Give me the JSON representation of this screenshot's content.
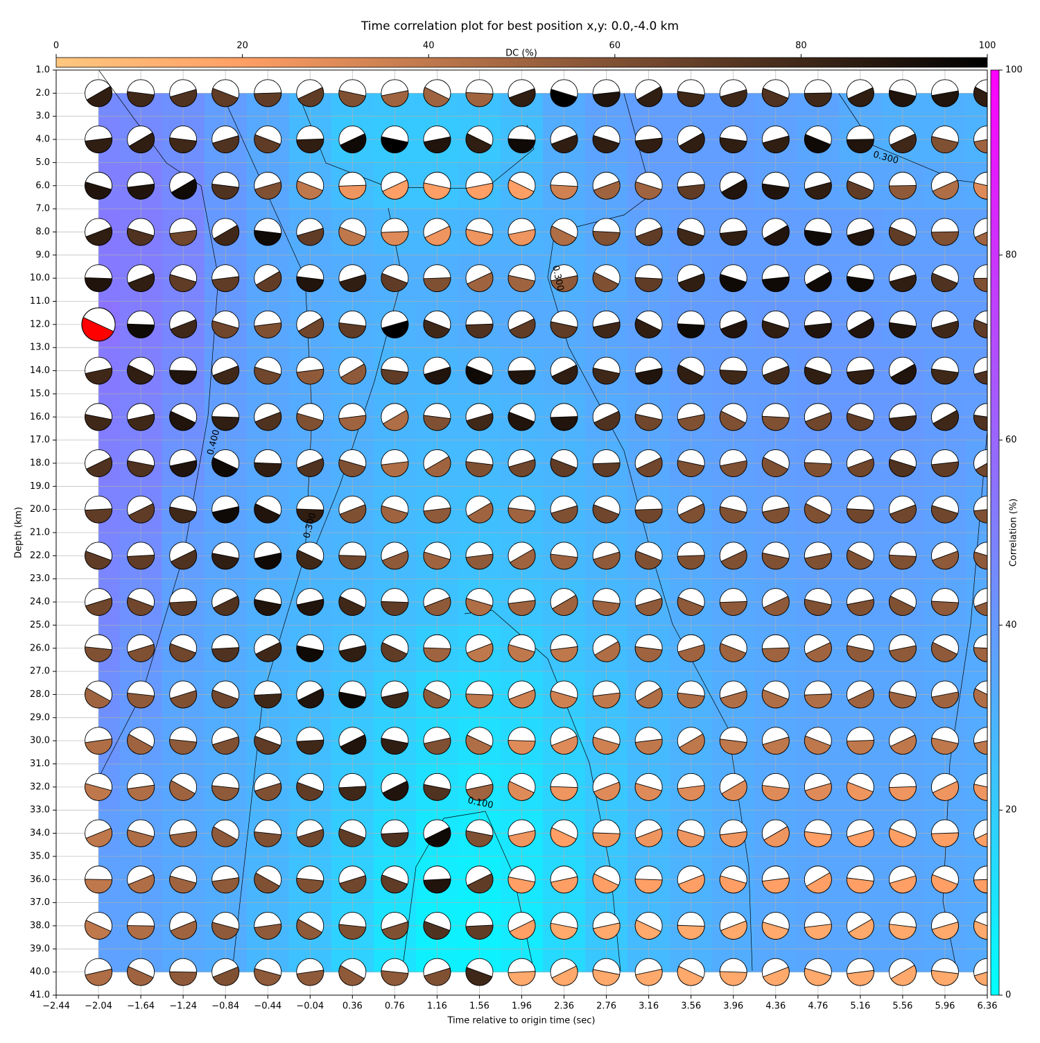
{
  "chart_data": {
    "type": "heatmap",
    "title": "Time correlation plot for best position x,y: 0.0,-4.0 km",
    "xlabel": "Time relative to origin time (sec)",
    "ylabel": "Depth (km)",
    "x": [
      -2.04,
      -1.64,
      -1.24,
      -0.84,
      -0.44,
      -0.04,
      0.36,
      0.76,
      1.16,
      1.56,
      1.96,
      2.36,
      2.76,
      3.16,
      3.56,
      3.96,
      4.36,
      4.76,
      5.16,
      5.56,
      5.96,
      6.36
    ],
    "y": [
      2,
      4,
      6,
      8,
      10,
      12,
      14,
      16,
      18,
      20,
      22,
      24,
      26,
      28,
      30,
      32,
      34,
      36,
      38,
      40
    ],
    "values": [
      [
        46,
        45,
        43,
        38,
        34,
        28,
        24,
        23,
        23,
        24,
        27,
        33,
        37,
        38,
        38,
        38,
        37,
        36,
        33,
        31,
        31,
        30
      ],
      [
        48,
        46,
        44,
        38,
        34,
        27,
        22,
        21,
        21,
        22,
        25,
        32,
        36,
        38,
        38,
        38,
        37,
        35,
        32,
        31,
        31,
        30
      ],
      [
        50,
        50,
        46,
        40,
        35,
        30,
        26,
        23,
        23,
        25,
        28,
        32,
        35,
        38,
        38,
        38,
        37,
        36,
        35,
        35,
        34,
        33
      ],
      [
        52,
        51,
        48,
        40,
        35,
        32,
        30,
        28,
        28,
        29,
        30,
        31,
        34,
        37,
        38,
        38,
        38,
        38,
        38,
        37,
        37,
        37
      ],
      [
        52,
        51,
        48,
        40,
        35,
        33,
        32,
        31,
        31,
        32,
        32,
        31,
        33,
        36,
        38,
        39,
        39,
        39,
        38,
        38,
        38,
        38
      ],
      [
        55,
        51,
        47,
        40,
        35,
        33,
        31,
        30,
        31,
        32,
        33,
        33,
        35,
        37,
        39,
        39,
        40,
        40,
        40,
        39,
        39,
        39
      ],
      [
        52,
        50,
        46,
        39,
        35,
        33,
        31,
        29,
        29,
        30,
        31,
        32,
        34,
        36,
        38,
        39,
        39,
        40,
        40,
        40,
        39,
        39
      ],
      [
        51,
        49,
        44,
        38,
        35,
        33,
        31,
        29,
        28,
        28,
        29,
        30,
        33,
        35,
        37,
        38,
        39,
        40,
        40,
        40,
        39,
        38
      ],
      [
        50,
        48,
        42,
        37,
        34,
        33,
        31,
        28,
        27,
        27,
        28,
        29,
        31,
        34,
        36,
        37,
        38,
        39,
        39,
        39,
        38,
        36
      ],
      [
        49,
        47,
        40,
        36,
        33,
        31,
        30,
        27,
        26,
        25,
        26,
        28,
        30,
        32,
        34,
        36,
        37,
        38,
        38,
        38,
        37,
        35
      ],
      [
        48,
        45,
        38,
        35,
        32,
        30,
        29,
        27,
        25,
        24,
        25,
        27,
        29,
        31,
        33,
        35,
        36,
        37,
        37,
        37,
        36,
        34
      ],
      [
        47,
        43,
        37,
        34,
        31,
        29,
        28,
        26,
        24,
        22,
        23,
        25,
        28,
        30,
        32,
        34,
        35,
        36,
        36,
        36,
        35,
        33
      ],
      [
        46,
        41,
        36,
        33,
        30,
        28,
        26,
        23,
        20,
        18,
        20,
        23,
        26,
        29,
        31,
        33,
        34,
        35,
        35,
        35,
        34,
        33
      ],
      [
        44,
        40,
        35,
        32,
        29,
        27,
        24,
        20,
        16,
        14,
        16,
        20,
        24,
        28,
        30,
        32,
        34,
        35,
        35,
        35,
        34,
        33
      ],
      [
        42,
        38,
        35,
        32,
        29,
        26,
        22,
        18,
        14,
        12,
        14,
        18,
        23,
        27,
        30,
        32,
        34,
        35,
        35,
        35,
        34,
        33
      ],
      [
        40,
        37,
        35,
        32,
        29,
        26,
        21,
        16,
        12,
        10,
        12,
        17,
        22,
        27,
        30,
        32,
        34,
        35,
        35,
        35,
        34,
        33
      ],
      [
        38,
        36,
        34,
        32,
        29,
        25,
        20,
        14,
        9,
        8,
        10,
        16,
        22,
        27,
        30,
        32,
        34,
        35,
        35,
        35,
        34,
        33
      ],
      [
        37,
        36,
        34,
        32,
        29,
        24,
        19,
        12,
        7,
        6,
        9,
        15,
        22,
        27,
        30,
        32,
        34,
        35,
        35,
        35,
        34,
        33
      ],
      [
        37,
        36,
        34,
        32,
        28,
        24,
        18,
        11,
        6,
        5,
        8,
        15,
        22,
        27,
        30,
        32,
        34,
        35,
        35,
        35,
        34,
        33
      ],
      [
        37,
        36,
        34,
        32,
        28,
        24,
        18,
        11,
        6,
        5,
        8,
        15,
        22,
        27,
        30,
        32,
        34,
        35,
        35,
        35,
        34,
        33
      ]
    ],
    "dc_values": [
      [
        85,
        80,
        75,
        70,
        70,
        70,
        60,
        50,
        50,
        50,
        85,
        100,
        90,
        85,
        80,
        80,
        75,
        80,
        85,
        90,
        90,
        85
      ],
      [
        85,
        85,
        80,
        75,
        70,
        85,
        95,
        100,
        90,
        85,
        95,
        85,
        85,
        85,
        85,
        85,
        85,
        95,
        90,
        80,
        60,
        50
      ],
      [
        90,
        90,
        95,
        75,
        60,
        40,
        25,
        20,
        20,
        20,
        20,
        35,
        50,
        50,
        70,
        90,
        90,
        85,
        70,
        55,
        45,
        30
      ],
      [
        85,
        75,
        65,
        80,
        95,
        70,
        40,
        30,
        25,
        25,
        25,
        45,
        60,
        70,
        80,
        85,
        90,
        95,
        90,
        70,
        60,
        50
      ],
      [
        90,
        85,
        70,
        70,
        70,
        90,
        85,
        70,
        60,
        50,
        50,
        55,
        60,
        70,
        85,
        95,
        95,
        95,
        95,
        85,
        75,
        60
      ],
      [
        90,
        95,
        80,
        65,
        60,
        65,
        70,
        100,
        80,
        75,
        70,
        70,
        80,
        85,
        95,
        90,
        85,
        90,
        90,
        90,
        80,
        70
      ],
      [
        80,
        85,
        90,
        80,
        65,
        55,
        55,
        70,
        90,
        95,
        90,
        85,
        80,
        90,
        85,
        80,
        80,
        85,
        85,
        90,
        80,
        75
      ],
      [
        80,
        80,
        90,
        85,
        75,
        60,
        50,
        45,
        60,
        80,
        90,
        90,
        75,
        65,
        60,
        60,
        60,
        65,
        70,
        80,
        80,
        75
      ],
      [
        75,
        75,
        90,
        95,
        85,
        75,
        60,
        45,
        50,
        60,
        65,
        70,
        70,
        65,
        60,
        60,
        60,
        60,
        65,
        75,
        70,
        65
      ],
      [
        70,
        70,
        80,
        95,
        90,
        85,
        60,
        50,
        55,
        50,
        50,
        60,
        65,
        65,
        60,
        60,
        60,
        60,
        65,
        65,
        65,
        60
      ],
      [
        70,
        70,
        75,
        85,
        95,
        80,
        65,
        55,
        50,
        55,
        50,
        50,
        55,
        60,
        60,
        60,
        60,
        60,
        60,
        60,
        55,
        55
      ],
      [
        65,
        65,
        70,
        75,
        90,
        90,
        80,
        70,
        55,
        45,
        50,
        50,
        50,
        55,
        55,
        55,
        55,
        60,
        60,
        60,
        55,
        55
      ],
      [
        60,
        60,
        65,
        75,
        80,
        95,
        85,
        70,
        50,
        40,
        40,
        40,
        45,
        50,
        50,
        50,
        50,
        50,
        55,
        55,
        55,
        50
      ],
      [
        50,
        55,
        60,
        65,
        80,
        90,
        95,
        80,
        55,
        40,
        35,
        35,
        40,
        45,
        45,
        45,
        45,
        45,
        50,
        50,
        50,
        45
      ],
      [
        45,
        50,
        55,
        60,
        70,
        80,
        90,
        85,
        60,
        45,
        30,
        30,
        35,
        40,
        40,
        40,
        40,
        40,
        40,
        40,
        40,
        40
      ],
      [
        40,
        45,
        50,
        55,
        60,
        70,
        80,
        90,
        75,
        50,
        30,
        25,
        30,
        30,
        30,
        30,
        30,
        30,
        25,
        25,
        25,
        25
      ],
      [
        40,
        45,
        50,
        55,
        60,
        65,
        70,
        75,
        95,
        60,
        25,
        20,
        25,
        25,
        25,
        25,
        25,
        20,
        20,
        20,
        20,
        20
      ],
      [
        40,
        45,
        50,
        55,
        60,
        60,
        65,
        70,
        90,
        70,
        20,
        20,
        20,
        20,
        20,
        20,
        20,
        20,
        20,
        20,
        20,
        20
      ],
      [
        40,
        45,
        50,
        55,
        55,
        55,
        60,
        60,
        75,
        70,
        20,
        15,
        15,
        15,
        15,
        15,
        15,
        15,
        15,
        15,
        15,
        15
      ],
      [
        45,
        50,
        55,
        60,
        55,
        55,
        55,
        55,
        60,
        80,
        15,
        15,
        15,
        15,
        15,
        15,
        15,
        15,
        15,
        15,
        15,
        15
      ]
    ],
    "best": {
      "x": -2.04,
      "y": 12,
      "color": "#ff0000"
    },
    "xlim": [
      -2.44,
      6.36
    ],
    "ylim": [
      1,
      41
    ],
    "y_inverted": true,
    "grid": true,
    "xticks": [
      {
        "value": -2.44,
        "label": "−2.44"
      },
      {
        "value": -2.04,
        "label": "−2.04"
      },
      {
        "value": -1.64,
        "label": "−1.64"
      },
      {
        "value": -1.24,
        "label": "−1.24"
      },
      {
        "value": -0.84,
        "label": "−0.84"
      },
      {
        "value": -0.44,
        "label": "−0.44"
      },
      {
        "value": -0.04,
        "label": "−0.04"
      },
      0.36,
      0.76,
      1.16,
      1.56,
      1.96,
      2.36,
      2.76,
      3.16,
      3.56,
      3.96,
      4.36,
      4.76,
      5.16,
      5.56,
      5.96,
      6.36
    ],
    "yticks": [
      {
        "value": 1,
        "label": "1.0"
      },
      {
        "value": 2,
        "label": "2.0"
      },
      {
        "value": 3,
        "label": "3.0"
      },
      {
        "value": 4,
        "label": "4.0"
      },
      {
        "value": 5,
        "label": "5.0"
      },
      {
        "value": 6,
        "label": "6.0"
      },
      {
        "value": 7,
        "label": "7.0"
      },
      {
        "value": 8,
        "label": "8.0"
      },
      {
        "value": 9,
        "label": "9.0"
      },
      {
        "value": 10,
        "label": "10.0"
      },
      {
        "value": 11,
        "label": "11.0"
      },
      {
        "value": 12,
        "label": "12.0"
      },
      {
        "value": 13,
        "label": "13.0"
      },
      {
        "value": 14,
        "label": "14.0"
      },
      {
        "value": 15,
        "label": "15.0"
      },
      {
        "value": 16,
        "label": "16.0"
      },
      {
        "value": 17,
        "label": "17.0"
      },
      {
        "value": 18,
        "label": "18.0"
      },
      {
        "value": 19,
        "label": "19.0"
      },
      {
        "value": 20,
        "label": "20.0"
      },
      {
        "value": 21,
        "label": "21.0"
      },
      {
        "value": 22,
        "label": "22.0"
      },
      {
        "value": 23,
        "label": "23.0"
      },
      {
        "value": 24,
        "label": "24.0"
      },
      {
        "value": 25,
        "label": "25.0"
      },
      {
        "value": 26,
        "label": "26.0"
      },
      {
        "value": 27,
        "label": "27.0"
      },
      {
        "value": 28,
        "label": "28.0"
      },
      {
        "value": 29,
        "label": "29.0"
      },
      {
        "value": 30,
        "label": "30.0"
      },
      {
        "value": 31,
        "label": "31.0"
      },
      {
        "value": 32,
        "label": "32.0"
      },
      {
        "value": 33,
        "label": "33.0"
      },
      {
        "value": 34,
        "label": "34.0"
      },
      {
        "value": 35,
        "label": "35.0"
      },
      {
        "value": 36,
        "label": "36.0"
      },
      {
        "value": 37,
        "label": "37.0"
      },
      {
        "value": 38,
        "label": "38.0"
      },
      {
        "value": 39,
        "label": "39.0"
      },
      {
        "value": 40,
        "label": "40.0"
      },
      {
        "value": 41,
        "label": "41.0"
      }
    ],
    "colorbar": {
      "label": "Correlation (%)",
      "lim": [
        0,
        100
      ],
      "ticks": [
        0,
        20,
        40,
        60,
        80,
        100
      ]
    },
    "dc_colorbar": {
      "label": "DC (%)",
      "lim": [
        0,
        100
      ],
      "ticks": [
        0,
        20,
        40,
        60,
        80,
        100
      ]
    },
    "annotations": [
      "0.300",
      "0.300",
      "0.400",
      "0.300",
      "0.100"
    ]
  }
}
